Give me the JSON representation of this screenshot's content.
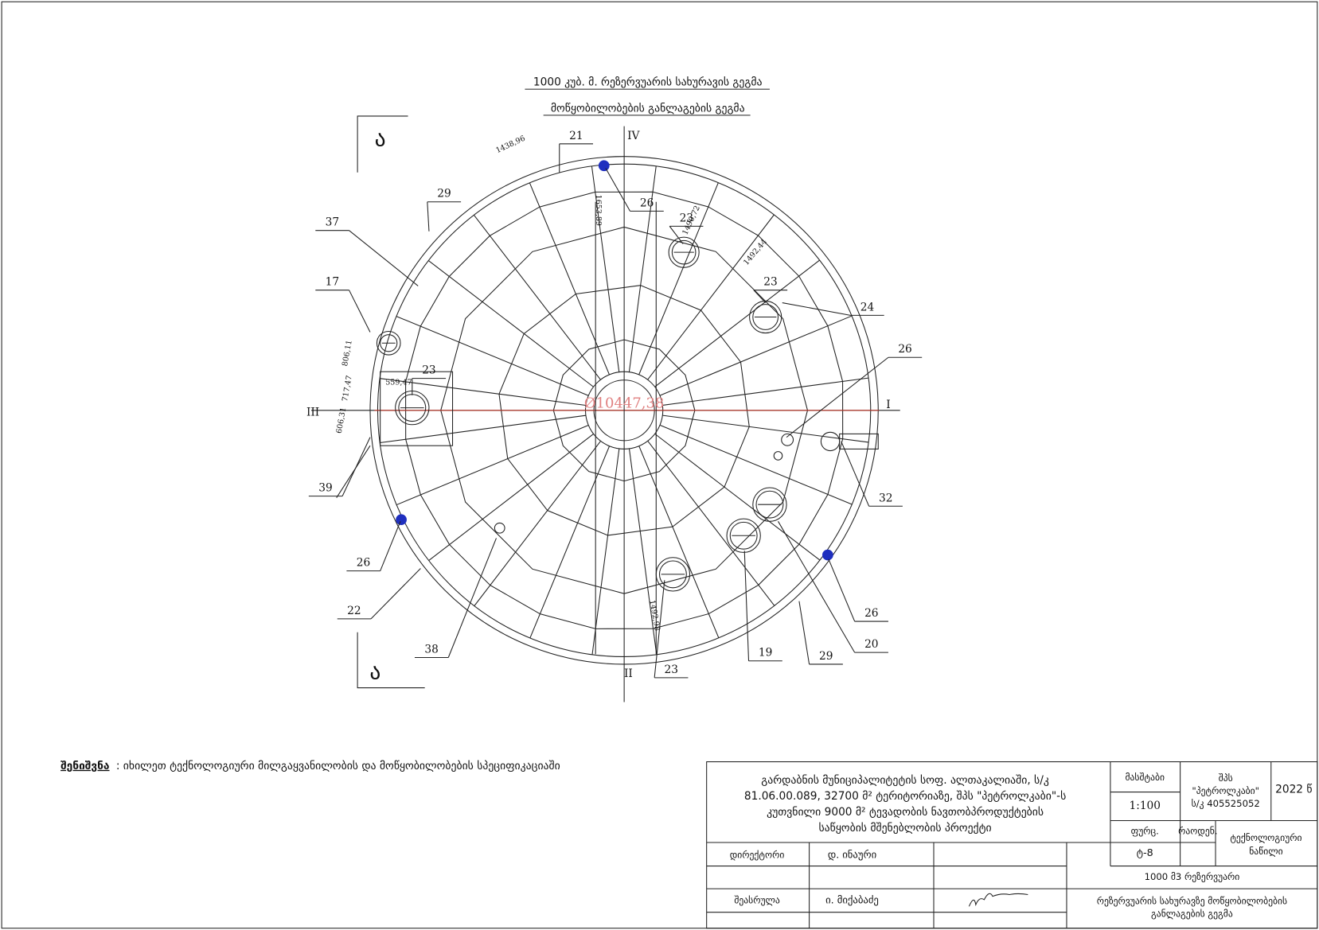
{
  "header": {
    "title": "1000 კუბ. მ. რეზერვუარის სახურავის გეგმა",
    "subtitle": "მოწყობილობების განლაგების გეგმა"
  },
  "section_marks": [
    "ა",
    "ა"
  ],
  "axes": [
    "I",
    "II",
    "III",
    "IV"
  ],
  "diameter": "Ø10447,38",
  "dimensions": [
    "1438,96",
    "1653,89",
    "1490,72",
    "1492,44",
    "806,11",
    "559,47",
    "717,47",
    "606,31",
    "1492,98"
  ],
  "callouts": [
    "21",
    "29",
    "37",
    "17",
    "23",
    "39",
    "26",
    "22",
    "38",
    "23",
    "19",
    "29",
    "20",
    "26",
    "32",
    "26",
    "24",
    "23",
    "23",
    "26"
  ],
  "note": {
    "label": "შენიშვნა",
    "text": ": იხილეთ ტექნოლოგიური მილგაყვანილობის და მოწყობილობების სპეციფიკაციაში"
  },
  "title_block": {
    "project": [
      "გარდაბნის მუნიციპალიტეტის სოფ. ალთაკალიაში, ს/კ",
      "81.06.00.089, 32700 მ² ტერიტორიაზე, შპს \"პეტროლკაბი\"-ს",
      "კუთვნილი 9000 მ² ტევადობის ნავთობპროდუქტების",
      "საწყობის მშენებლობის პროექტი"
    ],
    "scale_label": "მასშტაბი",
    "scale": "1:100",
    "company": [
      "შპს",
      "\"პეტროლკაბი\"",
      "ს/კ 405525052"
    ],
    "year": "2022 წ",
    "sheet_label": "ფურც.",
    "count_label": "რაოდენ.",
    "part": [
      "ტექნოლოგიური",
      "ნაწილი"
    ],
    "sheet": "ტ-8",
    "roles": [
      {
        "role": "დირექტორი",
        "name": "დ. ინაური"
      },
      {
        "role": "შეასრულა",
        "name": "ი. მიქაბაძე"
      }
    ],
    "object": "1000 მ3 რეზერვუარი",
    "drawing_name": [
      "რეზერვუარის სახურავზე მოწყობილობების",
      "განლაგების გეგმა"
    ]
  }
}
